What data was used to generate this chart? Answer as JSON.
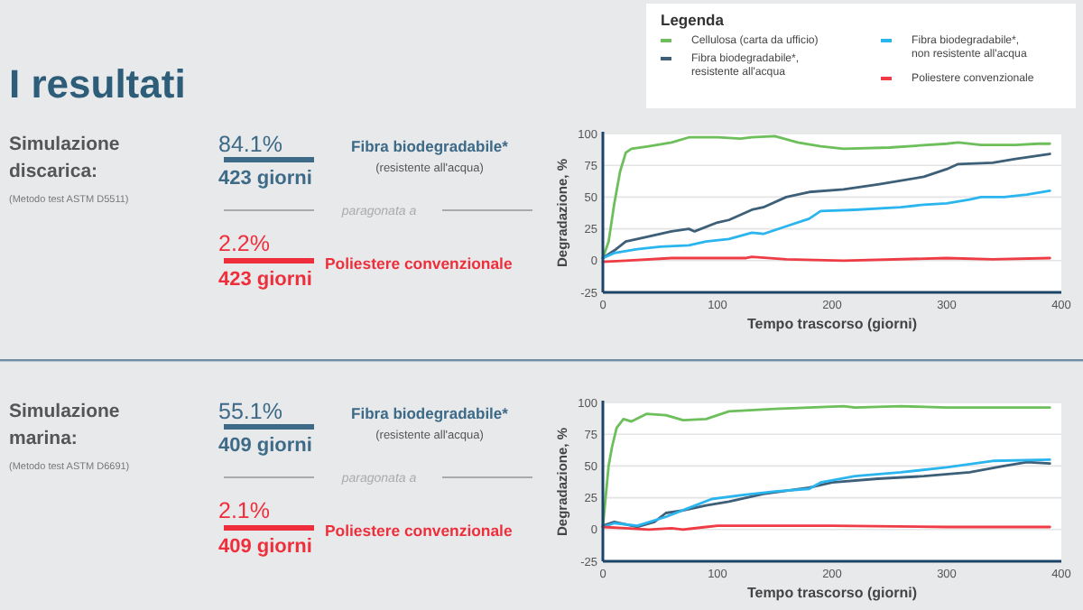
{
  "chart_data": [
    {
      "type": "other",
      "title": "I resultati",
      "annotations": [
        "Simulazione discarica:",
        "(Metodo test ASTM D5511)",
        "84.1%",
        "423 giorni",
        "Fibra biodegradabile*",
        "(resistente all'acqua)",
        "paragonata a",
        "2.2%",
        "423 giorni",
        "Poliestere convenzionale"
      ]
    },
    {
      "type": "line",
      "xlabel": "Tempo trascorso (giorni)",
      "ylabel": "Degradazione, %",
      "xlim": [
        0,
        400
      ],
      "xticks": [
        0,
        100,
        200,
        300,
        400
      ],
      "ylim": [
        -25,
        100
      ],
      "yticks": [
        -25,
        0,
        25,
        50,
        75,
        100
      ],
      "grid": "y",
      "legend": "top right",
      "legend_title": "Legenda",
      "series": [
        {
          "name": "Cellulosa (carta da ufficio)",
          "color": "#6dbf5b",
          "x": [
            0,
            5,
            10,
            15,
            20,
            25,
            40,
            60,
            75,
            100,
            120,
            130,
            150,
            170,
            190,
            210,
            250,
            300,
            310,
            330,
            360,
            380,
            390
          ],
          "values": [
            2,
            15,
            45,
            70,
            85,
            88,
            90,
            93,
            97,
            97,
            96,
            97,
            98,
            93,
            90,
            88,
            89,
            92,
            93,
            91,
            91,
            92,
            92
          ]
        },
        {
          "name": "Fibra biodegradabile*, resistente all'acqua",
          "color": "#3d5f78",
          "x": [
            0,
            10,
            20,
            30,
            45,
            60,
            75,
            80,
            100,
            110,
            130,
            140,
            160,
            180,
            210,
            240,
            280,
            300,
            310,
            340,
            360,
            390
          ],
          "values": [
            2,
            8,
            15,
            17,
            20,
            23,
            25,
            23,
            30,
            32,
            40,
            42,
            50,
            54,
            56,
            60,
            66,
            72,
            76,
            77,
            80,
            84
          ]
        },
        {
          "name": "Fibra biodegradabile*, non resistente all'acqua",
          "color": "#2bb5ee",
          "x": [
            0,
            10,
            30,
            50,
            75,
            90,
            110,
            130,
            140,
            160,
            180,
            190,
            220,
            260,
            280,
            300,
            320,
            330,
            350,
            370,
            390
          ],
          "values": [
            2,
            6,
            9,
            11,
            12,
            15,
            17,
            22,
            21,
            27,
            33,
            39,
            40,
            42,
            44,
            45,
            48,
            50,
            50,
            52,
            55
          ]
        },
        {
          "name": "Poliestere convenzionale",
          "color": "#ee3b44",
          "x": [
            0,
            20,
            60,
            125,
            130,
            160,
            210,
            300,
            340,
            390
          ],
          "values": [
            -1,
            0,
            2,
            2,
            3,
            1,
            0,
            2,
            1,
            2
          ]
        }
      ]
    },
    {
      "type": "other",
      "annotations": [
        "Simulazione marina:",
        "(Metodo test ASTM D6691)",
        "55.1%",
        "409 giorni",
        "Fibra biodegradabile*",
        "(resistente all'acqua)",
        "paragonata a",
        "2.1%",
        "409 giorni",
        "Poliestere convenzionale"
      ]
    },
    {
      "type": "line",
      "xlabel": "Tempo trascorso (giorni)",
      "ylabel": "Degradazione, %",
      "xlim": [
        0,
        400
      ],
      "xticks": [
        0,
        100,
        200,
        300,
        400
      ],
      "ylim": [
        -25,
        100
      ],
      "yticks": [
        -25,
        0,
        25,
        50,
        75,
        100
      ],
      "grid": "y",
      "series": [
        {
          "color": "#6dbf5b",
          "x": [
            0,
            5,
            8,
            12,
            18,
            25,
            38,
            55,
            70,
            90,
            110,
            150,
            210,
            220,
            260,
            300,
            390
          ],
          "values": [
            2,
            50,
            65,
            80,
            87,
            85,
            91,
            90,
            86,
            87,
            93,
            95,
            97,
            96,
            97,
            96,
            96
          ]
        },
        {
          "color": "#3d5f78",
          "x": [
            0,
            10,
            30,
            45,
            55,
            70,
            90,
            110,
            140,
            180,
            200,
            240,
            280,
            320,
            350,
            370,
            390
          ],
          "values": [
            3,
            6,
            2,
            6,
            13,
            15,
            19,
            22,
            28,
            33,
            37,
            40,
            42,
            45,
            50,
            53,
            52
          ]
        },
        {
          "color": "#2bb5ee",
          "x": [
            0,
            10,
            30,
            55,
            75,
            95,
            120,
            150,
            180,
            190,
            220,
            260,
            300,
            340,
            390
          ],
          "values": [
            2,
            5,
            3,
            10,
            17,
            24,
            27,
            30,
            32,
            37,
            42,
            45,
            49,
            54,
            55
          ]
        },
        {
          "color": "#ee3b44",
          "x": [
            0,
            20,
            40,
            60,
            70,
            90,
            100,
            200,
            300,
            390
          ],
          "values": [
            2,
            1,
            0,
            1,
            0,
            2,
            3,
            3,
            2,
            2
          ]
        }
      ]
    }
  ]
}
